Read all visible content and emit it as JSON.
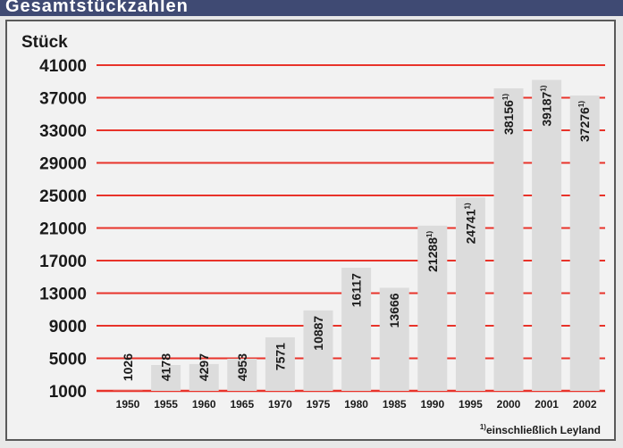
{
  "header": {
    "title": "Gesamtstückzahlen"
  },
  "colors": {
    "header_bg": "#3f4a73",
    "grid": "#e8332a",
    "bar": "#dcdcdc",
    "panel": "#f2f2f2"
  },
  "chart_data": {
    "type": "bar",
    "ylabel": "Stück",
    "ylim": [
      1000,
      41000
    ],
    "yticks": [
      41000,
      37000,
      33000,
      29000,
      25000,
      21000,
      17000,
      13000,
      9000,
      5000,
      1000
    ],
    "ytick_labels": [
      "41000",
      "37000",
      "33000",
      "29000",
      "25000",
      "21000",
      "17000",
      "13000",
      "9000",
      "5000",
      "1000"
    ],
    "grid": true,
    "categories": [
      "1950",
      "1955",
      "1960",
      "1965",
      "1970",
      "1975",
      "1980",
      "1985",
      "1990",
      "1995",
      "2000",
      "2001",
      "2002"
    ],
    "values": [
      1026,
      4178,
      4297,
      4953,
      7571,
      10887,
      16117,
      13666,
      21288,
      24741,
      38156,
      39187,
      37276
    ],
    "value_labels": [
      "1026",
      "4178",
      "4297",
      "4953",
      "7571",
      "10887",
      "16117",
      "13666",
      "21288",
      "24741",
      "38156",
      "39187",
      "37276"
    ],
    "footnote_marks": [
      false,
      false,
      false,
      false,
      false,
      false,
      false,
      false,
      true,
      true,
      true,
      true,
      true
    ],
    "footnote_mark": "1)",
    "footnote": "einschließlich Leyland"
  }
}
